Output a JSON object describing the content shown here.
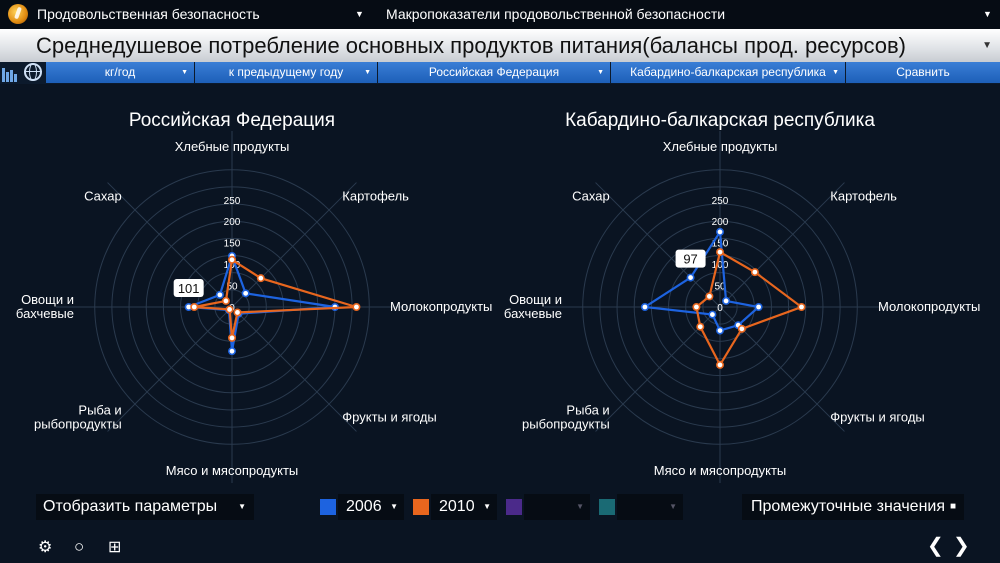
{
  "topbar": {
    "left_select": "Продовольственная безопасность",
    "right_select": "Макропоказатели продовольственной безопасности",
    "arrow": "▼"
  },
  "header": {
    "title": "Среднедушевое потребление основных продуктов питания(балансы прод. ресурсов)",
    "arrow": "▼"
  },
  "filters": {
    "unit": "кг/год",
    "compare_mode": "к предыдущему году",
    "region1": "Российская Федерация",
    "region2": "Кабардино-балкарская республика",
    "compare_button": "Сравнить",
    "dd": "▼"
  },
  "colors": {
    "series_2006": "#1d63e0",
    "series_2010": "#e8661e",
    "series_3": "#4b2a8a",
    "series_4": "#1a6a74",
    "grid": "#2a3a4e"
  },
  "chart_data": [
    {
      "type": "radar",
      "title": "Российская Федерация",
      "axes": [
        "Хлебные продукты",
        "Картофель",
        "Молокопродукты",
        "Фрукты и ягоды",
        "Мясо и мясопродукты",
        "Рыба и рыбопродукты",
        "Овощи и бахчевые",
        "Сахар"
      ],
      "rmax": 250,
      "ticks": [
        0,
        50,
        100,
        150,
        200,
        250
      ],
      "series": [
        {
          "name": "2006",
          "values": [
            119,
            45,
            240,
            22,
            103,
            10,
            101,
            40
          ]
        },
        {
          "name": "2010",
          "values": [
            110,
            95,
            290,
            18,
            72,
            8,
            88,
            20
          ]
        }
      ],
      "callout": {
        "value": "101"
      }
    },
    {
      "type": "radar",
      "title": "Кабардино-балкарская республика",
      "axes": [
        "Хлебные продукты",
        "Картофель",
        "Молокопродукты",
        "Фрукты и ягоды",
        "Мясо и мясопродукты",
        "Рыба и рыбопродукты",
        "Овощи и бахчевые",
        "Сахар"
      ],
      "rmax": 250,
      "ticks": [
        0,
        50,
        100,
        150,
        200,
        250
      ],
      "series": [
        {
          "name": "2006",
          "values": [
            175,
            20,
            90,
            60,
            55,
            25,
            175,
            97
          ]
        },
        {
          "name": "2010",
          "values": [
            128,
            115,
            190,
            72,
            135,
            65,
            55,
            35
          ]
        }
      ],
      "callout": {
        "value": "97"
      }
    }
  ],
  "controls": {
    "display_params": "Отобразить параметры",
    "year1": "2006",
    "year2": "2010",
    "intermediate": "Промежуточные значения",
    "checkbox": "■",
    "dd": "▼"
  },
  "footer": {
    "settings": "⚙",
    "search": "○",
    "tree": "⊞",
    "prev": "❮",
    "next": "❯"
  }
}
